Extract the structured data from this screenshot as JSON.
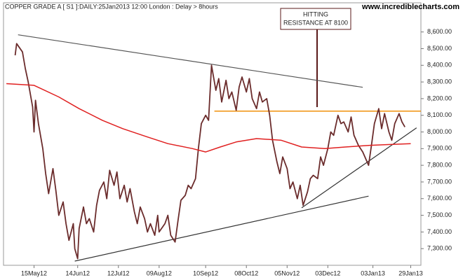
{
  "chart_data": {
    "type": "line",
    "title": "COPPER GRADE A [ S1 ]:DAILY:25Jan2013 12:00 London : Delay > 8hours",
    "watermark": "www.incrediblecharts.com",
    "annotation": [
      "HITTING",
      "RESISTANCE AT 8100"
    ],
    "xlim": [
      "2012-04-24",
      "2013-02-05"
    ],
    "xticks": [
      {
        "value": "2012-05-15",
        "label": "15May12"
      },
      {
        "value": "2012-06-14",
        "label": "14Jun12"
      },
      {
        "value": "2012-07-12",
        "label": "12Jul12"
      },
      {
        "value": "2012-08-09",
        "label": "09Aug12"
      },
      {
        "value": "2012-09-10",
        "label": "10Sep12"
      },
      {
        "value": "2012-10-08",
        "label": "08Oct12"
      },
      {
        "value": "2012-11-05",
        "label": "05Nov12"
      },
      {
        "value": "2012-12-03",
        "label": "03Dec12"
      },
      {
        "value": "2013-01-03",
        "label": "03Jan13"
      },
      {
        "value": "2013-01-29",
        "label": "29Jan13"
      }
    ],
    "ylim": [
      7200,
      8775
    ],
    "yticks": [
      {
        "value": 7300,
        "label": "7,300.00"
      },
      {
        "value": 7400,
        "label": "7,400.00"
      },
      {
        "value": 7500,
        "label": "7,500.00"
      },
      {
        "value": 7600,
        "label": "7,600.00"
      },
      {
        "value": 7700,
        "label": "7,700.00"
      },
      {
        "value": 7800,
        "label": "7,800.00"
      },
      {
        "value": 7900,
        "label": "7,900.00"
      },
      {
        "value": 8000,
        "label": "8,000.00"
      },
      {
        "value": 8100,
        "label": "8,100.00"
      },
      {
        "value": 8200,
        "label": "8,200.00"
      },
      {
        "value": 8300,
        "label": "8,300.00"
      },
      {
        "value": 8400,
        "label": "8,400.00"
      },
      {
        "value": 8500,
        "label": "8,500.00"
      },
      {
        "value": 8600,
        "label": "8,600.00"
      }
    ],
    "series": [
      {
        "color": "#6b2c2c",
        "x": [
          "2012-05-02",
          "2012-05-03",
          "2012-05-07",
          "2012-05-09",
          "2012-05-11",
          "2012-05-14",
          "2012-05-15",
          "2012-05-16",
          "2012-05-18",
          "2012-05-21",
          "2012-05-23",
          "2012-05-25",
          "2012-05-28",
          "2012-05-30",
          "2012-06-01",
          "2012-06-04",
          "2012-06-06",
          "2012-06-08",
          "2012-06-11",
          "2012-06-12",
          "2012-06-14",
          "2012-06-15",
          "2012-06-18",
          "2012-06-20",
          "2012-06-22",
          "2012-06-25",
          "2012-06-27",
          "2012-06-29",
          "2012-07-02",
          "2012-07-04",
          "2012-07-06",
          "2012-07-09",
          "2012-07-11",
          "2012-07-13",
          "2012-07-16",
          "2012-07-18",
          "2012-07-20",
          "2012-07-23",
          "2012-07-25",
          "2012-07-27",
          "2012-07-30",
          "2012-08-01",
          "2012-08-03",
          "2012-08-06",
          "2012-08-08",
          "2012-08-09",
          "2012-08-13",
          "2012-08-15",
          "2012-08-17",
          "2012-08-20",
          "2012-08-22",
          "2012-08-24",
          "2012-08-27",
          "2012-08-29",
          "2012-08-31",
          "2012-09-03",
          "2012-09-05",
          "2012-09-07",
          "2012-09-10",
          "2012-09-12",
          "2012-09-14",
          "2012-09-17",
          "2012-09-19",
          "2012-09-21",
          "2012-09-24",
          "2012-09-26",
          "2012-09-28",
          "2012-10-01",
          "2012-10-03",
          "2012-10-05",
          "2012-10-08",
          "2012-10-10",
          "2012-10-12",
          "2012-10-15",
          "2012-10-17",
          "2012-10-19",
          "2012-10-22",
          "2012-10-24",
          "2012-10-26",
          "2012-10-29",
          "2012-10-31",
          "2012-11-02",
          "2012-11-05",
          "2012-11-07",
          "2012-11-09",
          "2012-11-12",
          "2012-11-14",
          "2012-11-16",
          "2012-11-19",
          "2012-11-21",
          "2012-11-23",
          "2012-11-26",
          "2012-11-28",
          "2012-11-30",
          "2012-12-03",
          "2012-12-05",
          "2012-12-07",
          "2012-12-10",
          "2012-12-12",
          "2012-12-14",
          "2012-12-17",
          "2012-12-19",
          "2012-12-21",
          "2012-12-24",
          "2012-12-27",
          "2012-12-31",
          "2013-01-02",
          "2013-01-04",
          "2013-01-07",
          "2013-01-09",
          "2013-01-11",
          "2013-01-14",
          "2013-01-16",
          "2013-01-18",
          "2013-01-21",
          "2013-01-23",
          "2013-01-25"
        ],
        "values": [
          8460,
          8530,
          8480,
          8380,
          8300,
          8150,
          8000,
          8190,
          8050,
          7900,
          7750,
          7630,
          7780,
          7650,
          7500,
          7580,
          7450,
          7350,
          7450,
          7300,
          7240,
          7420,
          7550,
          7450,
          7480,
          7400,
          7560,
          7650,
          7700,
          7600,
          7770,
          7680,
          7760,
          7600,
          7680,
          7580,
          7660,
          7520,
          7450,
          7550,
          7480,
          7400,
          7450,
          7380,
          7500,
          7400,
          7450,
          7500,
          7380,
          7340,
          7470,
          7590,
          7620,
          7680,
          7660,
          7720,
          7900,
          8050,
          8100,
          8070,
          8400,
          8250,
          8320,
          8180,
          8310,
          8200,
          8240,
          8130,
          8270,
          8330,
          8240,
          8320,
          8200,
          8140,
          8240,
          8180,
          8200,
          8100,
          7950,
          7820,
          7750,
          7850,
          7780,
          7660,
          7700,
          7600,
          7680,
          7560,
          7640,
          7720,
          7740,
          7720,
          7850,
          7800,
          7900,
          8000,
          7980,
          8100,
          8050,
          8060,
          8000,
          8090,
          7980,
          7920,
          7880,
          7800,
          7920,
          8050,
          8140,
          8020,
          8110,
          8000,
          7950,
          8050,
          8110,
          8060,
          8030
        ]
      },
      {
        "color": "#e02020",
        "x": [
          "2012-04-26",
          "2012-05-15",
          "2012-06-01",
          "2012-06-15",
          "2012-07-01",
          "2012-07-15",
          "2012-08-01",
          "2012-08-15",
          "2012-09-01",
          "2012-09-10",
          "2012-09-20",
          "2012-10-01",
          "2012-10-15",
          "2012-11-01",
          "2012-11-15",
          "2012-12-01",
          "2012-12-15",
          "2013-01-01",
          "2013-01-15",
          "2013-01-29"
        ],
        "values": [
          8290,
          8280,
          8210,
          8140,
          8070,
          8020,
          7970,
          7930,
          7900,
          7880,
          7910,
          7940,
          7960,
          7950,
          7910,
          7900,
          7910,
          7920,
          7925,
          7930
        ]
      }
    ],
    "trendlines": [
      {
        "color": "#555555",
        "x": [
          "2012-05-04",
          "2012-12-27"
        ],
        "values": [
          8583,
          8268
        ]
      },
      {
        "color": "#f0900a",
        "x": [
          "2012-09-16",
          "2013-02-05"
        ],
        "values": [
          8125,
          8125
        ]
      },
      {
        "color": "#333333",
        "x": [
          "2012-06-12",
          "2012-12-31"
        ],
        "values": [
          7225,
          7615
        ]
      },
      {
        "color": "#333333",
        "x": [
          "2012-11-15",
          "2013-02-02"
        ],
        "values": [
          7545,
          8025
        ]
      }
    ]
  }
}
